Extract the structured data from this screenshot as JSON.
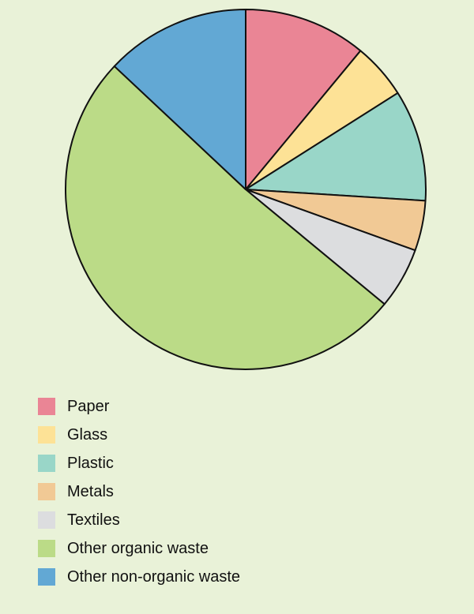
{
  "chart_data": {
    "type": "pie",
    "title": "",
    "legend_position": "bottom-left",
    "categories": [
      "Paper",
      "Glass",
      "Plastic",
      "Metals",
      "Textiles",
      "Other organic waste",
      "Other non-organic waste"
    ],
    "values": [
      11,
      5,
      10,
      4.5,
      5.5,
      51,
      13
    ],
    "colors": [
      "#ea8595",
      "#fde296",
      "#99d6c8",
      "#f1c995",
      "#dcdddf",
      "#bbdb87",
      "#62a8d4"
    ],
    "start_angle_deg": 0,
    "direction": "clockwise"
  }
}
